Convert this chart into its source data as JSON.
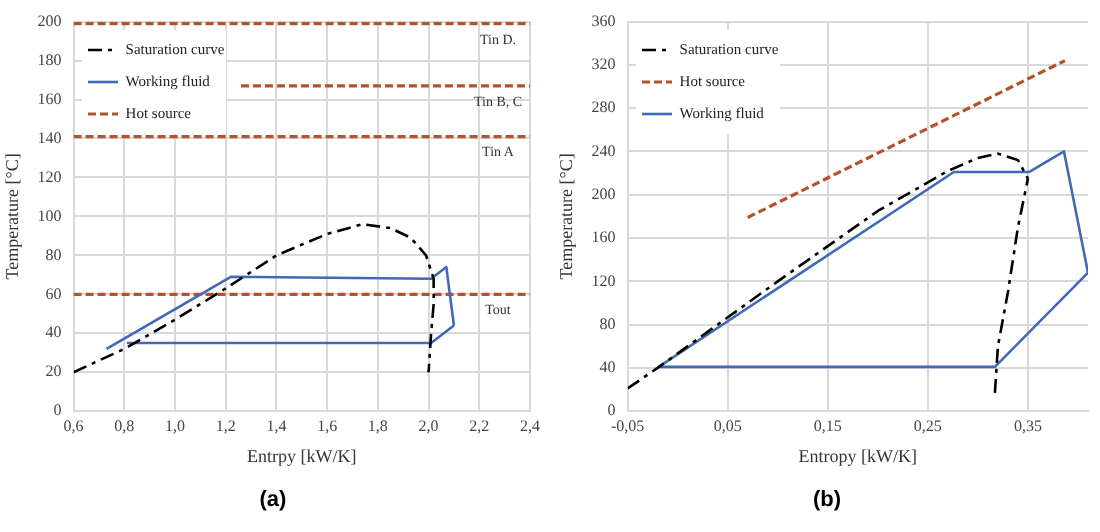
{
  "chart_data": [
    {
      "type": "line",
      "xlabel": "Entrpy [kW/K]",
      "ylabel": "Temperature [°C]",
      "xlim": [
        0.6,
        2.4
      ],
      "ylim": [
        0,
        200
      ],
      "xticks": [
        {
          "value": 0.6,
          "label": "0,6"
        },
        {
          "value": 0.8,
          "label": "0,8"
        },
        {
          "value": 1.0,
          "label": "1,0"
        },
        {
          "value": 1.2,
          "label": "1,2"
        },
        {
          "value": 1.4,
          "label": "1,4"
        },
        {
          "value": 1.6,
          "label": "1,6"
        },
        {
          "value": 1.8,
          "label": "1,8"
        },
        {
          "value": 2.0,
          "label": "2,0"
        },
        {
          "value": 2.2,
          "label": "2,2"
        },
        {
          "value": 2.4,
          "label": "2,4"
        }
      ],
      "yticks": [
        0,
        20,
        40,
        60,
        80,
        100,
        120,
        140,
        160,
        180,
        200
      ],
      "grid": true,
      "legend": "top left",
      "marker": "none",
      "series": [
        {
          "name": "Saturation curve",
          "color": "#000000",
          "line_style": "dashdot",
          "x": [
            0.6,
            0.8,
            1.0,
            1.2,
            1.4,
            1.6,
            1.74,
            1.85,
            1.93,
            1.99,
            2.02,
            2.02,
            2.01,
            2.0
          ],
          "values": [
            20,
            32,
            47,
            63,
            80,
            91,
            96,
            94,
            89,
            80,
            68,
            55,
            40,
            20
          ]
        },
        {
          "name": "Working fluid",
          "color": "#4169b8",
          "line_style": "solid",
          "x": [
            0.73,
            1.22,
            2.01,
            2.07,
            2.1
          ],
          "values": [
            32,
            69,
            68,
            74,
            44
          ]
        },
        {
          "color": "#4169b8",
          "line_style": "solid",
          "x": [
            0.81,
            2.01,
            2.1
          ],
          "values": [
            35,
            35,
            44
          ]
        },
        {
          "name": "Hot source",
          "color": "#b5522a",
          "line_style": "dashed",
          "x": [
            0.6,
            2.4
          ],
          "values": [
            199,
            199
          ]
        },
        {
          "color": "#b5522a",
          "line_style": "dashed",
          "x": [
            1.26,
            2.4
          ],
          "values": [
            167,
            167
          ]
        },
        {
          "color": "#b5522a",
          "line_style": "dashed",
          "x": [
            0.6,
            2.4
          ],
          "values": [
            141,
            141
          ]
        },
        {
          "color": "#b5522a",
          "line_style": "dashed",
          "x": [
            0.6,
            2.4
          ],
          "values": [
            60,
            60
          ]
        }
      ],
      "annotations": [
        {
          "text": "Tin D.",
          "y": 199
        },
        {
          "text": "Tin B, C",
          "y": 167
        },
        {
          "text": "Tin A",
          "y": 141
        },
        {
          "text": "Tout",
          "y": 60
        },
        "(a)"
      ]
    },
    {
      "type": "line",
      "xlabel": "Entropy [kW/K]",
      "ylabel": "Temperature [°C]",
      "xlim": [
        -0.05,
        0.41
      ],
      "ylim": [
        0,
        360
      ],
      "xticks": [
        {
          "value": -0.05,
          "label": "-0,05"
        },
        {
          "value": 0.05,
          "label": "0,05"
        },
        {
          "value": 0.15,
          "label": "0,15"
        },
        {
          "value": 0.25,
          "label": "0,25"
        },
        {
          "value": 0.35,
          "label": "0,35"
        }
      ],
      "yticks": [
        0,
        40,
        80,
        120,
        160,
        200,
        240,
        280,
        320,
        360
      ],
      "grid": true,
      "legend": "top left",
      "marker": "none",
      "series": [
        {
          "name": "Saturation curve",
          "color": "#000000",
          "line_style": "dashdot",
          "x": [
            -0.05,
            -0.02,
            0.1,
            0.2,
            0.27,
            0.3,
            0.32,
            0.34,
            0.35
          ],
          "values": [
            21,
            40,
            120,
            185,
            222,
            234,
            238,
            232,
            215
          ]
        },
        {
          "color": "#000000",
          "line_style": "dashdot",
          "x": [
            0.317,
            0.32,
            0.33,
            0.34,
            0.35
          ],
          "values": [
            17,
            60,
            110,
            170,
            215
          ]
        },
        {
          "name": "Hot source",
          "color": "#b5522a",
          "line_style": "dashed",
          "x": [
            0.07,
            0.387
          ],
          "values": [
            179,
            324
          ]
        },
        {
          "name": "Working fluid",
          "color": "#4169b8",
          "line_style": "solid",
          "x": [
            -0.019,
            0.276,
            0.351,
            0.386,
            0.41
          ],
          "values": [
            41,
            221,
            221,
            240,
            128
          ]
        },
        {
          "color": "#4169b8",
          "line_style": "solid",
          "x": [
            -0.019,
            0.317,
            0.41
          ],
          "values": [
            41,
            41,
            128
          ]
        }
      ],
      "annotations": [
        "(b)"
      ]
    }
  ]
}
